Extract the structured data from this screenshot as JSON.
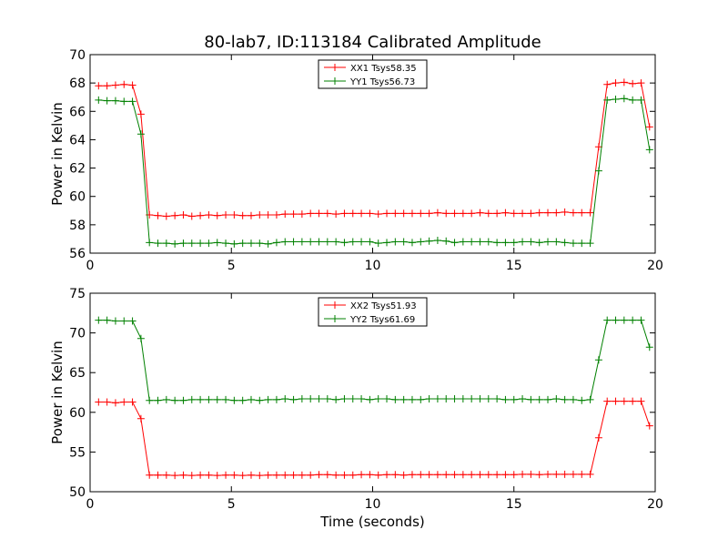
{
  "figure_title": "80-lab7, ID:113184 Calibrated Amplitude",
  "colors": {
    "red": "#ff0000",
    "green": "#008000"
  },
  "chart_data": [
    {
      "type": "line",
      "title": "80-lab7, ID:113184 Calibrated Amplitude",
      "xlabel": "",
      "ylabel": "Power in Kelvin",
      "xlim": [
        0,
        20
      ],
      "ylim": [
        56,
        70
      ],
      "xticks": [
        0,
        5,
        10,
        15,
        20
      ],
      "yticks": [
        56,
        58,
        60,
        62,
        64,
        66,
        68,
        70
      ],
      "grid": false,
      "legend_position": "top-center",
      "x": [
        0.3,
        0.6,
        0.9,
        1.2,
        1.5,
        1.8,
        2.1,
        2.4,
        2.7,
        3.0,
        3.3,
        3.6,
        3.9,
        4.2,
        4.5,
        4.8,
        5.1,
        5.4,
        5.7,
        6.0,
        6.3,
        6.6,
        6.9,
        7.2,
        7.5,
        7.8,
        8.1,
        8.4,
        8.7,
        9.0,
        9.3,
        9.6,
        9.9,
        10.2,
        10.5,
        10.8,
        11.1,
        11.4,
        11.7,
        12.0,
        12.3,
        12.6,
        12.9,
        13.2,
        13.5,
        13.8,
        14.1,
        14.4,
        14.7,
        15.0,
        15.3,
        15.6,
        15.9,
        16.2,
        16.5,
        16.8,
        17.1,
        17.4,
        17.7,
        18.0,
        18.3,
        18.6,
        18.9,
        19.2,
        19.5,
        19.8
      ],
      "series": [
        {
          "name": "XX1 Tsys58.35",
          "color": "#ff0000",
          "values": [
            67.8,
            67.8,
            67.85,
            67.9,
            67.85,
            65.8,
            58.7,
            58.65,
            58.6,
            58.65,
            58.7,
            58.6,
            58.65,
            58.7,
            58.65,
            58.7,
            58.7,
            58.65,
            58.65,
            58.7,
            58.7,
            58.7,
            58.75,
            58.75,
            58.75,
            58.8,
            58.8,
            58.8,
            58.75,
            58.8,
            58.8,
            58.8,
            58.8,
            58.75,
            58.8,
            58.8,
            58.8,
            58.8,
            58.8,
            58.8,
            58.85,
            58.8,
            58.8,
            58.8,
            58.8,
            58.85,
            58.8,
            58.8,
            58.85,
            58.8,
            58.8,
            58.8,
            58.85,
            58.85,
            58.85,
            58.9,
            58.85,
            58.85,
            58.85,
            63.5,
            67.9,
            68.0,
            68.05,
            67.95,
            68.0,
            64.9
          ]
        },
        {
          "name": "YY1 Tsys56.73",
          "color": "#008000",
          "values": [
            66.8,
            66.75,
            66.75,
            66.7,
            66.7,
            64.4,
            56.75,
            56.7,
            56.7,
            56.65,
            56.7,
            56.7,
            56.7,
            56.7,
            56.75,
            56.7,
            56.65,
            56.7,
            56.7,
            56.7,
            56.65,
            56.75,
            56.8,
            56.8,
            56.8,
            56.8,
            56.8,
            56.8,
            56.8,
            56.75,
            56.8,
            56.8,
            56.8,
            56.7,
            56.75,
            56.8,
            56.8,
            56.75,
            56.8,
            56.85,
            56.9,
            56.85,
            56.75,
            56.8,
            56.8,
            56.8,
            56.8,
            56.75,
            56.75,
            56.75,
            56.8,
            56.8,
            56.75,
            56.8,
            56.8,
            56.75,
            56.7,
            56.7,
            56.7,
            61.8,
            66.8,
            66.85,
            66.9,
            66.8,
            66.8,
            63.3
          ]
        }
      ]
    },
    {
      "type": "line",
      "title": "",
      "xlabel": "Time (seconds)",
      "ylabel": "Power in Kelvin",
      "xlim": [
        0,
        20
      ],
      "ylim": [
        50,
        75
      ],
      "xticks": [
        0,
        5,
        10,
        15,
        20
      ],
      "yticks": [
        50,
        55,
        60,
        65,
        70,
        75
      ],
      "grid": false,
      "legend_position": "top-center",
      "x": [
        0.3,
        0.6,
        0.9,
        1.2,
        1.5,
        1.8,
        2.1,
        2.4,
        2.7,
        3.0,
        3.3,
        3.6,
        3.9,
        4.2,
        4.5,
        4.8,
        5.1,
        5.4,
        5.7,
        6.0,
        6.3,
        6.6,
        6.9,
        7.2,
        7.5,
        7.8,
        8.1,
        8.4,
        8.7,
        9.0,
        9.3,
        9.6,
        9.9,
        10.2,
        10.5,
        10.8,
        11.1,
        11.4,
        11.7,
        12.0,
        12.3,
        12.6,
        12.9,
        13.2,
        13.5,
        13.8,
        14.1,
        14.4,
        14.7,
        15.0,
        15.3,
        15.6,
        15.9,
        16.2,
        16.5,
        16.8,
        17.1,
        17.4,
        17.7,
        18.0,
        18.3,
        18.6,
        18.9,
        19.2,
        19.5,
        19.8
      ],
      "series": [
        {
          "name": "XX2 Tsys51.93",
          "color": "#ff0000",
          "values": [
            61.3,
            61.3,
            61.2,
            61.3,
            61.3,
            59.2,
            52.1,
            52.1,
            52.1,
            52.05,
            52.1,
            52.05,
            52.1,
            52.1,
            52.05,
            52.1,
            52.1,
            52.05,
            52.1,
            52.05,
            52.1,
            52.1,
            52.1,
            52.1,
            52.1,
            52.1,
            52.15,
            52.15,
            52.1,
            52.1,
            52.1,
            52.15,
            52.15,
            52.1,
            52.15,
            52.15,
            52.1,
            52.15,
            52.15,
            52.15,
            52.15,
            52.15,
            52.15,
            52.15,
            52.15,
            52.15,
            52.15,
            52.15,
            52.15,
            52.15,
            52.2,
            52.2,
            52.15,
            52.2,
            52.2,
            52.2,
            52.2,
            52.2,
            52.2,
            56.8,
            61.4,
            61.4,
            61.4,
            61.4,
            61.4,
            58.3
          ]
        },
        {
          "name": "YY2 Tsys61.69",
          "color": "#008000",
          "values": [
            71.6,
            71.6,
            71.5,
            71.5,
            71.5,
            69.3,
            61.5,
            61.5,
            61.6,
            61.5,
            61.5,
            61.6,
            61.6,
            61.6,
            61.6,
            61.6,
            61.5,
            61.5,
            61.6,
            61.5,
            61.6,
            61.6,
            61.7,
            61.6,
            61.7,
            61.7,
            61.7,
            61.7,
            61.6,
            61.7,
            61.7,
            61.7,
            61.6,
            61.7,
            61.7,
            61.6,
            61.6,
            61.6,
            61.6,
            61.7,
            61.7,
            61.7,
            61.7,
            61.7,
            61.7,
            61.7,
            61.7,
            61.7,
            61.6,
            61.6,
            61.7,
            61.6,
            61.6,
            61.6,
            61.7,
            61.6,
            61.6,
            61.5,
            61.6,
            66.6,
            71.6,
            71.6,
            71.6,
            71.6,
            71.6,
            68.2
          ]
        }
      ]
    }
  ]
}
